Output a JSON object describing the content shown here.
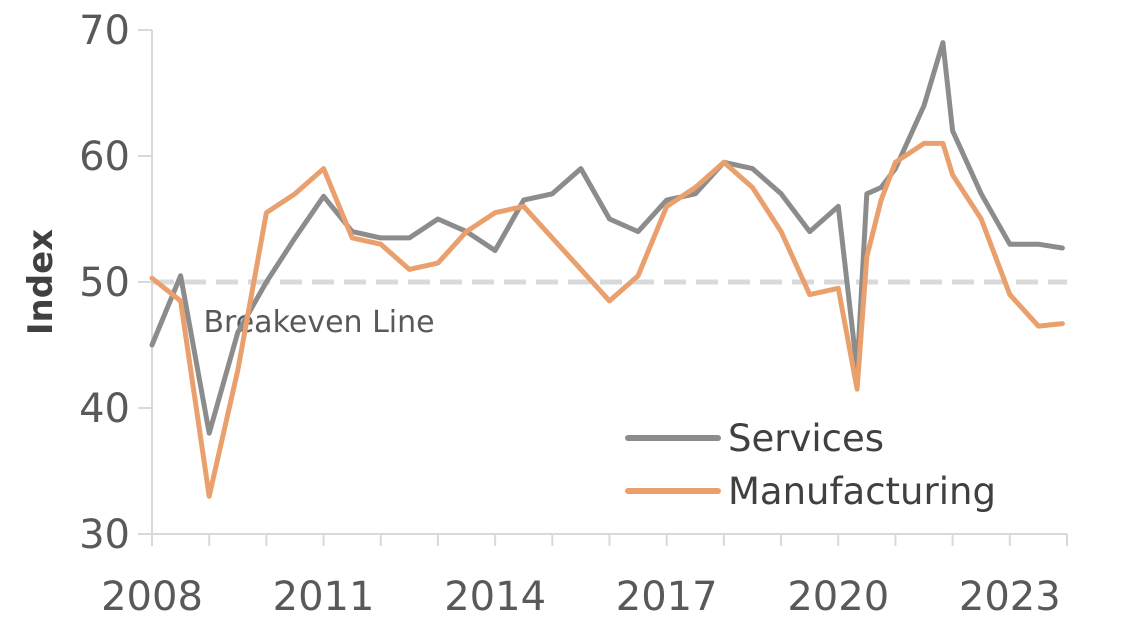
{
  "chart_data": {
    "type": "line",
    "title": "",
    "xlabel": "",
    "ylabel": "Index",
    "ylim": [
      30,
      70
    ],
    "yticks": [
      30,
      40,
      50,
      60,
      70
    ],
    "xlim": [
      2008,
      2024
    ],
    "xticks": [
      2008,
      2011,
      2014,
      2017,
      2020,
      2023
    ],
    "grid": false,
    "legend_position": "bottom-right",
    "reference_line": {
      "y": 50,
      "label": "Breakeven Line",
      "color": "#d9d9d9"
    },
    "x": [
      2008.0,
      2008.5,
      2009.0,
      2009.5,
      2010.0,
      2010.5,
      2011.0,
      2011.5,
      2012.0,
      2012.5,
      2013.0,
      2013.5,
      2014.0,
      2014.5,
      2015.0,
      2015.5,
      2016.0,
      2016.5,
      2017.0,
      2017.5,
      2018.0,
      2018.5,
      2019.0,
      2019.5,
      2020.0,
      2020.33,
      2020.5,
      2020.75,
      2021.0,
      2021.5,
      2021.83,
      2022.0,
      2022.5,
      2023.0,
      2023.5,
      2023.92
    ],
    "series": [
      {
        "name": "Services",
        "color": "#8c8c8c",
        "values": [
          45.0,
          50.5,
          38.0,
          46.0,
          50.0,
          53.5,
          56.8,
          54.0,
          53.5,
          53.5,
          55.0,
          54.0,
          52.5,
          56.5,
          57.0,
          59.0,
          55.0,
          54.0,
          56.5,
          57.0,
          59.5,
          59.0,
          57.0,
          54.0,
          56.0,
          43.0,
          57.0,
          57.5,
          59.0,
          64.0,
          69.0,
          62.0,
          57.0,
          53.0,
          53.0,
          52.7
        ]
      },
      {
        "name": "Manufacturing",
        "color": "#e9a06d",
        "values": [
          50.3,
          48.5,
          33.0,
          43.0,
          55.5,
          57.0,
          59.0,
          53.5,
          53.0,
          51.0,
          51.5,
          54.0,
          55.5,
          56.0,
          53.5,
          51.0,
          48.5,
          50.5,
          56.0,
          57.5,
          59.5,
          57.5,
          54.0,
          49.0,
          49.5,
          41.5,
          52.0,
          56.5,
          59.5,
          61.0,
          61.0,
          58.5,
          55.0,
          49.0,
          46.5,
          46.7
        ]
      }
    ]
  }
}
